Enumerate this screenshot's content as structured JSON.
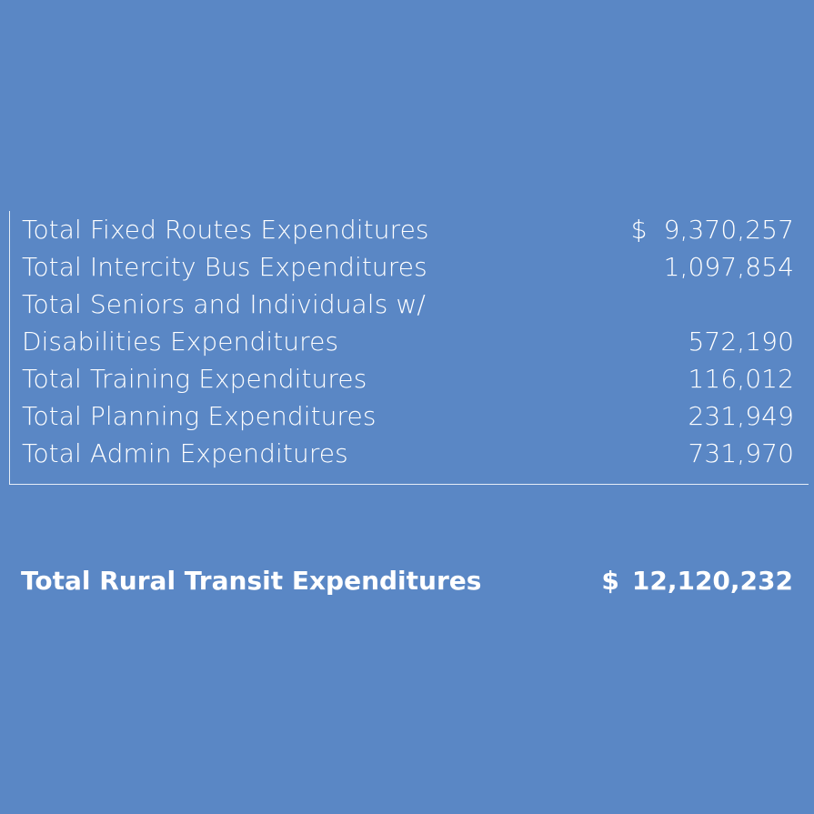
{
  "rows": [
    {
      "label": "Total Fixed Routes Expenditures",
      "dollar": "$",
      "amount": "9,370,257"
    },
    {
      "label": "Total Intercity Bus Expenditures",
      "dollar": "",
      "amount": "1,097,854"
    },
    {
      "label": "Total Seniors and Individuals w/",
      "dollar": "",
      "amount": ""
    },
    {
      "label": "Disabilities Expenditures",
      "dollar": "",
      "amount": "572,190"
    },
    {
      "label": "Total Training Expenditures",
      "dollar": "",
      "amount": "116,012"
    },
    {
      "label": "Total Planning Expenditures",
      "dollar": "",
      "amount": "231,949"
    },
    {
      "label": "Total Admin Expenditures",
      "dollar": "",
      "amount": "731,970"
    }
  ],
  "total": {
    "label": "Total Rural Transit Expenditures",
    "dollar": "$",
    "amount": "12,120,232"
  },
  "colors": {
    "background": "#5a87c5",
    "text": "#ffffff"
  }
}
